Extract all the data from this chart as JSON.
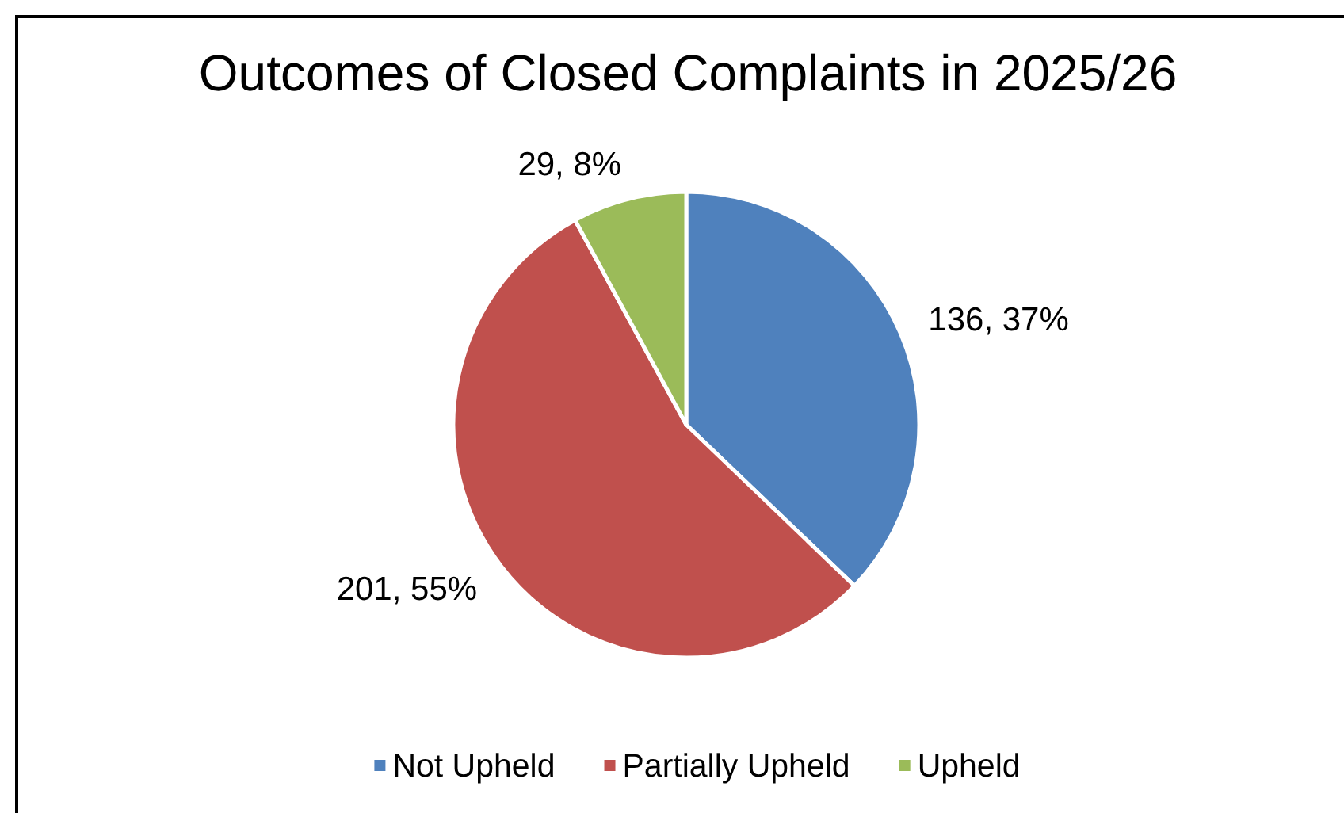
{
  "chart_data": {
    "type": "pie",
    "title": "Outcomes of Closed Complaints in 2025/26",
    "categories": [
      "Not Upheld",
      "Partially Upheld",
      "Upheld"
    ],
    "values": [
      136,
      201,
      29
    ],
    "colors": [
      "#4f81bd",
      "#c0504d",
      "#9bbb59"
    ],
    "value_labels": [
      "136, 37%",
      "201, 55%",
      "29, 8%"
    ],
    "legend": "bottom"
  }
}
